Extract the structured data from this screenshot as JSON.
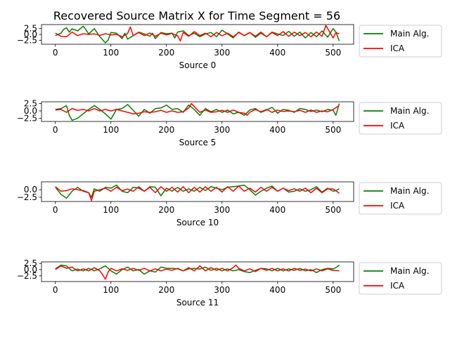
{
  "figure": {
    "title": "Recovered Source Matrix X for Time Segment = 56"
  },
  "colors": {
    "main": "#008000",
    "ica": "#ff0000",
    "axis": "#000000",
    "legend_border": "#cccccc"
  },
  "chart_data": [
    {
      "type": "line",
      "xlabel": "Source 0",
      "xlim": [
        -25,
        537
      ],
      "ylim": [
        -4.2,
        4.2
      ],
      "xticks": [
        0,
        100,
        200,
        300,
        400,
        500
      ],
      "yticks": [
        2.5,
        0.0,
        -2.5
      ],
      "ytick_labels": [
        "2.5",
        "0.0",
        "−2.5"
      ],
      "legend": "right",
      "series": [
        {
          "name": "Main Alg.",
          "color": "#008000",
          "x": [
            0,
            10,
            15,
            20,
            25,
            30,
            40,
            50,
            55,
            60,
            70,
            80,
            90,
            95,
            100,
            110,
            120,
            125,
            130,
            140,
            150,
            160,
            170,
            175,
            180,
            190,
            200,
            210,
            215,
            220,
            230,
            240,
            250,
            260,
            270,
            280,
            290,
            300,
            310,
            320,
            330,
            340,
            350,
            360,
            370,
            380,
            390,
            400,
            410,
            420,
            430,
            440,
            450,
            460,
            470,
            480,
            490,
            500,
            505,
            511
          ],
          "y": [
            -0.5,
            0.5,
            2.2,
            2.8,
            1.0,
            2.4,
            1.5,
            3.5,
            2.0,
            0.2,
            2.5,
            -1.0,
            -3.6,
            -2.4,
            0.8,
            0.5,
            -1.8,
            0.5,
            -2.0,
            -0.5,
            1.0,
            0.2,
            -0.8,
            0.5,
            -1.8,
            0.8,
            0.3,
            0.5,
            -1.5,
            1.0,
            1.5,
            -0.5,
            0.5,
            -1.0,
            0.2,
            0.8,
            -1.0,
            1.8,
            0.2,
            -1.5,
            1.0,
            -0.5,
            0.8,
            -1.2,
            0.5,
            -1.0,
            1.0,
            0.2,
            -0.5,
            1.3,
            -0.8,
            1.0,
            -1.5,
            0.8,
            -1.0,
            1.5,
            -1.2,
            2.5,
            1.0,
            -2.8
          ]
        },
        {
          "name": "ICA",
          "color": "#ff0000",
          "x": [
            0,
            10,
            20,
            30,
            40,
            50,
            60,
            70,
            80,
            90,
            100,
            110,
            120,
            130,
            135,
            140,
            150,
            160,
            170,
            180,
            190,
            200,
            210,
            220,
            225,
            230,
            240,
            250,
            260,
            270,
            280,
            290,
            300,
            310,
            320,
            330,
            340,
            350,
            360,
            370,
            380,
            390,
            400,
            410,
            420,
            430,
            440,
            450,
            460,
            470,
            480,
            487,
            495,
            500,
            505,
            511
          ],
          "y": [
            0.5,
            -0.8,
            -1.0,
            1.0,
            -0.5,
            0.3,
            0.0,
            0.2,
            -0.4,
            0.3,
            -0.2,
            0.0,
            -1.0,
            0.4,
            3.2,
            -0.5,
            0.8,
            -0.5,
            0.6,
            -0.8,
            0.5,
            -0.2,
            0.4,
            -0.6,
            -2.8,
            0.8,
            -0.8,
            1.2,
            -0.5,
            0.5,
            -1.0,
            0.8,
            -0.6,
            0.5,
            -1.0,
            0.8,
            -0.5,
            0.8,
            -0.8,
            1.0,
            -1.0,
            0.8,
            -0.5,
            1.2,
            -0.8,
            1.0,
            -0.5,
            0.8,
            -1.0,
            1.0,
            -0.8,
            3.8,
            0.5,
            -1.5,
            0.8,
            0.2
          ]
        }
      ]
    },
    {
      "type": "line",
      "xlabel": "Source 5",
      "xlim": [
        -25,
        537
      ],
      "ylim": [
        -3.6,
        3.1
      ],
      "xticks": [
        0,
        100,
        200,
        300,
        400,
        500
      ],
      "yticks": [
        2.5,
        0.0,
        -2.5
      ],
      "ytick_labels": [
        "2.5",
        "0.0",
        "−2.5"
      ],
      "legend": "right",
      "series": [
        {
          "name": "Main Alg.",
          "color": "#008000",
          "x": [
            0,
            10,
            20,
            25,
            30,
            40,
            50,
            60,
            70,
            80,
            90,
            100,
            110,
            120,
            130,
            140,
            150,
            160,
            170,
            180,
            190,
            200,
            210,
            220,
            230,
            240,
            250,
            260,
            270,
            280,
            290,
            300,
            310,
            320,
            330,
            340,
            350,
            360,
            370,
            380,
            390,
            400,
            410,
            420,
            430,
            440,
            450,
            460,
            470,
            480,
            490,
            500,
            505,
            511
          ],
          "y": [
            0.5,
            0.8,
            1.8,
            -1.5,
            -3.2,
            -2.5,
            -1.0,
            0.5,
            1.8,
            0.5,
            -1.0,
            -2.8,
            0.5,
            0.8,
            2.2,
            0.2,
            -1.8,
            0.5,
            -0.8,
            0.8,
            1.0,
            2.0,
            0.5,
            0.8,
            -0.5,
            2.0,
            0.5,
            -1.5,
            0.8,
            -0.3,
            0.5,
            -0.5,
            0.3,
            -1.0,
            -0.5,
            -1.5,
            0.3,
            0.8,
            -0.5,
            0.3,
            1.2,
            -0.8,
            0.5,
            0.2,
            -0.5,
            0.8,
            0.5,
            -0.2,
            0.3,
            -0.3,
            0.5,
            0.2,
            -1.5,
            2.5
          ]
        },
        {
          "name": "ICA",
          "color": "#ff0000",
          "x": [
            0,
            10,
            20,
            30,
            40,
            50,
            60,
            70,
            80,
            90,
            100,
            110,
            120,
            130,
            140,
            150,
            160,
            170,
            180,
            190,
            200,
            210,
            220,
            230,
            240,
            245,
            250,
            260,
            270,
            280,
            290,
            300,
            310,
            320,
            330,
            340,
            345,
            350,
            360,
            370,
            380,
            390,
            400,
            410,
            420,
            430,
            440,
            450,
            460,
            470,
            480,
            490,
            500,
            511
          ],
          "y": [
            0.3,
            0.5,
            -0.5,
            0.8,
            0.2,
            0.5,
            0.0,
            0.8,
            0.0,
            0.5,
            0.0,
            0.5,
            0.0,
            -0.5,
            -1.0,
            -0.8,
            -0.3,
            -0.5,
            -0.3,
            0.2,
            -0.5,
            0.0,
            -0.5,
            -0.3,
            1.0,
            2.5,
            1.5,
            -0.5,
            0.3,
            -0.5,
            -0.3,
            0.2,
            -0.5,
            0.3,
            -0.5,
            -0.8,
            -1.5,
            -0.5,
            0.5,
            -0.3,
            0.5,
            -0.5,
            0.3,
            -0.2,
            0.0,
            -0.3,
            0.2,
            -0.5,
            0.3,
            -0.5,
            0.0,
            -0.3,
            0.5,
            1.8
          ]
        }
      ]
    },
    {
      "type": "line",
      "xlabel": "Source 10",
      "xlim": [
        -25,
        537
      ],
      "ylim": [
        -3.9,
        2.6
      ],
      "xticks": [
        0,
        100,
        200,
        300,
        400,
        500
      ],
      "yticks": [
        0.0,
        -2.5
      ],
      "ytick_labels": [
        "0.0",
        "−2.5"
      ],
      "legend": "right",
      "series": [
        {
          "name": "Main Alg.",
          "color": "#008000",
          "x": [
            0,
            10,
            20,
            30,
            40,
            50,
            60,
            65,
            70,
            80,
            90,
            100,
            110,
            120,
            130,
            140,
            150,
            160,
            170,
            180,
            190,
            200,
            210,
            220,
            230,
            240,
            250,
            260,
            270,
            280,
            290,
            300,
            310,
            320,
            330,
            340,
            350,
            360,
            370,
            380,
            390,
            400,
            410,
            420,
            430,
            440,
            450,
            460,
            470,
            480,
            490,
            500,
            505,
            511
          ],
          "y": [
            0.8,
            -1.5,
            -2.8,
            -0.5,
            0.8,
            -0.5,
            -1.0,
            -2.5,
            0.3,
            -0.5,
            0.8,
            0.5,
            1.5,
            -0.5,
            -1.0,
            0.8,
            0.5,
            -0.5,
            1.0,
            0.8,
            -2.0,
            0.5,
            -0.5,
            0.8,
            -0.5,
            0.3,
            -0.5,
            0.8,
            -0.3,
            1.0,
            0.5,
            0.0,
            0.8,
            1.0,
            1.2,
            1.5,
            0.0,
            -1.8,
            -0.5,
            0.5,
            1.2,
            -0.5,
            0.5,
            -0.8,
            -0.5,
            0.3,
            -0.5,
            0.0,
            1.0,
            -0.8,
            0.5,
            -0.5,
            -0.3,
            0.3
          ]
        },
        {
          "name": "ICA",
          "color": "#ff0000",
          "x": [
            0,
            10,
            20,
            30,
            40,
            50,
            60,
            65,
            70,
            80,
            90,
            100,
            110,
            120,
            130,
            140,
            150,
            160,
            170,
            180,
            190,
            200,
            210,
            220,
            230,
            240,
            250,
            260,
            270,
            280,
            290,
            300,
            310,
            320,
            330,
            340,
            350,
            360,
            370,
            380,
            390,
            400,
            410,
            420,
            430,
            440,
            450,
            460,
            470,
            480,
            490,
            500,
            505,
            511
          ],
          "y": [
            1.0,
            -0.5,
            -0.3,
            0.3,
            0.0,
            -0.3,
            -1.0,
            -3.6,
            -0.5,
            0.0,
            0.5,
            -0.5,
            0.8,
            -0.3,
            0.2,
            -0.5,
            1.0,
            -0.5,
            0.8,
            -1.0,
            1.0,
            -0.5,
            0.8,
            -0.8,
            1.0,
            -1.0,
            0.8,
            -0.8,
            1.0,
            -0.5,
            0.8,
            -0.8,
            1.0,
            -0.5,
            1.2,
            -0.5,
            0.5,
            -0.8,
            0.8,
            -0.5,
            0.8,
            -0.5,
            0.5,
            -0.3,
            0.3,
            -0.5,
            0.5,
            -1.0,
            0.5,
            -1.0,
            0.3,
            0.2,
            -0.3,
            -1.2
          ]
        }
      ]
    },
    {
      "type": "line",
      "xlabel": "Source 11",
      "xlim": [
        -25,
        537
      ],
      "ylim": [
        -4.8,
        3.1
      ],
      "xticks": [
        0,
        100,
        200,
        300,
        400,
        500
      ],
      "yticks": [
        2.5,
        0.0,
        -2.5
      ],
      "ytick_labels": [
        "2.5",
        "0.0",
        "−2.5"
      ],
      "legend": "right",
      "series": [
        {
          "name": "Main Alg.",
          "color": "#008000",
          "x": [
            0,
            10,
            20,
            30,
            40,
            50,
            60,
            70,
            80,
            90,
            100,
            110,
            120,
            130,
            140,
            150,
            160,
            170,
            180,
            190,
            200,
            210,
            220,
            230,
            240,
            250,
            260,
            270,
            280,
            290,
            300,
            310,
            320,
            330,
            340,
            350,
            360,
            370,
            380,
            390,
            400,
            410,
            420,
            430,
            440,
            450,
            460,
            470,
            480,
            490,
            500,
            505,
            511
          ],
          "y": [
            0.3,
            1.8,
            1.5,
            -0.5,
            0.2,
            -0.5,
            0.5,
            -0.5,
            0.3,
            1.5,
            -0.5,
            -1.8,
            0.0,
            1.0,
            -0.5,
            0.0,
            -1.8,
            -0.5,
            -1.0,
            1.0,
            0.5,
            0.5,
            0.3,
            -0.5,
            0.3,
            0.5,
            0.2,
            1.0,
            -0.3,
            0.5,
            -0.5,
            0.3,
            -0.5,
            0.0,
            -0.8,
            -1.2,
            -0.3,
            0.5,
            0.3,
            -0.5,
            0.5,
            -0.5,
            0.3,
            -0.3,
            0.5,
            -0.5,
            0.0,
            -1.2,
            0.0,
            0.5,
            0.3,
            0.8,
            1.8
          ]
        },
        {
          "name": "ICA",
          "color": "#ff0000",
          "x": [
            0,
            10,
            20,
            30,
            40,
            50,
            60,
            70,
            80,
            85,
            90,
            95,
            100,
            110,
            120,
            130,
            140,
            150,
            160,
            170,
            180,
            190,
            200,
            210,
            220,
            230,
            240,
            250,
            260,
            270,
            280,
            290,
            300,
            310,
            320,
            325,
            330,
            340,
            350,
            360,
            370,
            380,
            390,
            400,
            410,
            420,
            430,
            440,
            450,
            460,
            470,
            480,
            490,
            500,
            511
          ],
          "y": [
            0.0,
            1.5,
            0.5,
            1.0,
            -0.5,
            0.3,
            -0.5,
            0.8,
            -0.5,
            -2.0,
            -3.9,
            -1.0,
            0.5,
            -0.5,
            0.3,
            -0.3,
            0.5,
            -0.3,
            0.5,
            -0.5,
            0.3,
            -0.5,
            0.2,
            -0.3,
            0.5,
            -0.5,
            0.8,
            -0.5,
            1.5,
            -0.5,
            0.8,
            -0.3,
            0.5,
            -0.5,
            0.8,
            1.8,
            0.5,
            -0.5,
            0.3,
            -0.8,
            0.5,
            -0.3,
            0.5,
            -0.5,
            0.3,
            -0.5,
            0.5,
            -0.3,
            0.2,
            -0.5,
            0.3,
            -0.5,
            0.3,
            -0.3,
            -0.5
          ]
        }
      ]
    }
  ]
}
